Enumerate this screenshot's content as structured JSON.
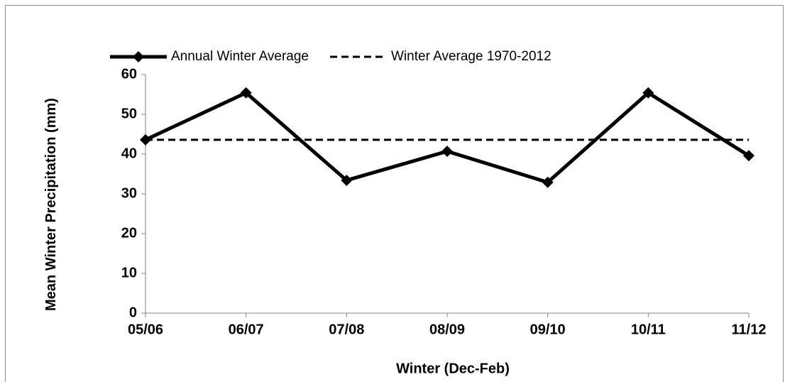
{
  "chart_data": {
    "type": "line",
    "xlabel": "Winter (Dec-Feb)",
    "ylabel": "Mean Winter Precipitation (mm)",
    "categories": [
      "05/06",
      "06/07",
      "07/08",
      "08/09",
      "09/10",
      "10/11",
      "11/12"
    ],
    "series": [
      {
        "name": "Annual Winter Average",
        "color": "#000000",
        "style": "solid",
        "marker": "diamond",
        "values": [
          43.6,
          55.4,
          33.4,
          40.7,
          32.9,
          55.4,
          39.6
        ]
      },
      {
        "name": "Winter Average 1970-2012",
        "color": "#000000",
        "style": "dashed",
        "values": [
          43.6,
          43.6,
          43.6,
          43.6,
          43.6,
          43.6,
          43.6
        ]
      }
    ],
    "ylim": [
      0,
      60
    ],
    "yticks": [
      0,
      10,
      20,
      30,
      40,
      50,
      60
    ],
    "grid": false,
    "legend": "top"
  }
}
